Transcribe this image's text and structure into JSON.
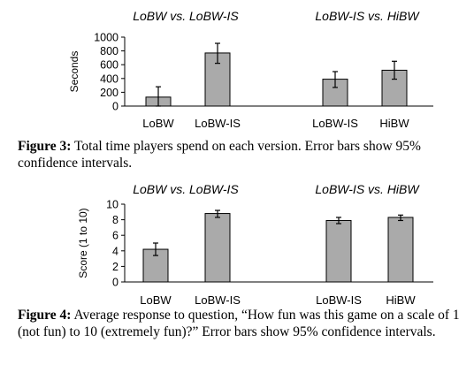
{
  "chart_data": [
    {
      "type": "bar",
      "group_titles": [
        "LoBW vs. LoBW-IS",
        "LoBW-IS vs. HiBW"
      ],
      "categories": [
        "LoBW",
        "LoBW-IS",
        "LoBW-IS",
        "HiBW"
      ],
      "values": [
        130,
        770,
        390,
        520
      ],
      "error_low": [
        0,
        620,
        270,
        390
      ],
      "error_high": [
        280,
        910,
        500,
        650
      ],
      "ylabel": "Seconds",
      "ylim": [
        0,
        1000
      ],
      "yticks": [
        0,
        200,
        400,
        600,
        800,
        1000
      ],
      "bar_color": "#aaaaaa",
      "grid": false
    },
    {
      "type": "bar",
      "group_titles": [
        "LoBW vs. LoBW-IS",
        "LoBW-IS vs. HiBW"
      ],
      "categories": [
        "LoBW",
        "LoBW-IS",
        "LoBW-IS",
        "HiBW"
      ],
      "values": [
        4.2,
        8.8,
        7.9,
        8.3
      ],
      "error_low": [
        3.4,
        8.3,
        7.5,
        7.9
      ],
      "error_high": [
        5.0,
        9.2,
        8.3,
        8.6
      ],
      "ylabel": "Score (1 to 10)",
      "ylim": [
        0,
        10
      ],
      "yticks": [
        0,
        2,
        4,
        6,
        8,
        10
      ],
      "bar_color": "#aaaaaa",
      "grid": false
    }
  ],
  "captions": [
    {
      "label": "Figure 3:",
      "text": "Total time players spend on each version. Error bars show 95% confidence intervals."
    },
    {
      "label": "Figure 4:",
      "text": "Average response to question, “How fun was this game on a scale of 1 (not fun) to 10 (extremely fun)?” Error bars show 95% confidence intervals."
    }
  ]
}
